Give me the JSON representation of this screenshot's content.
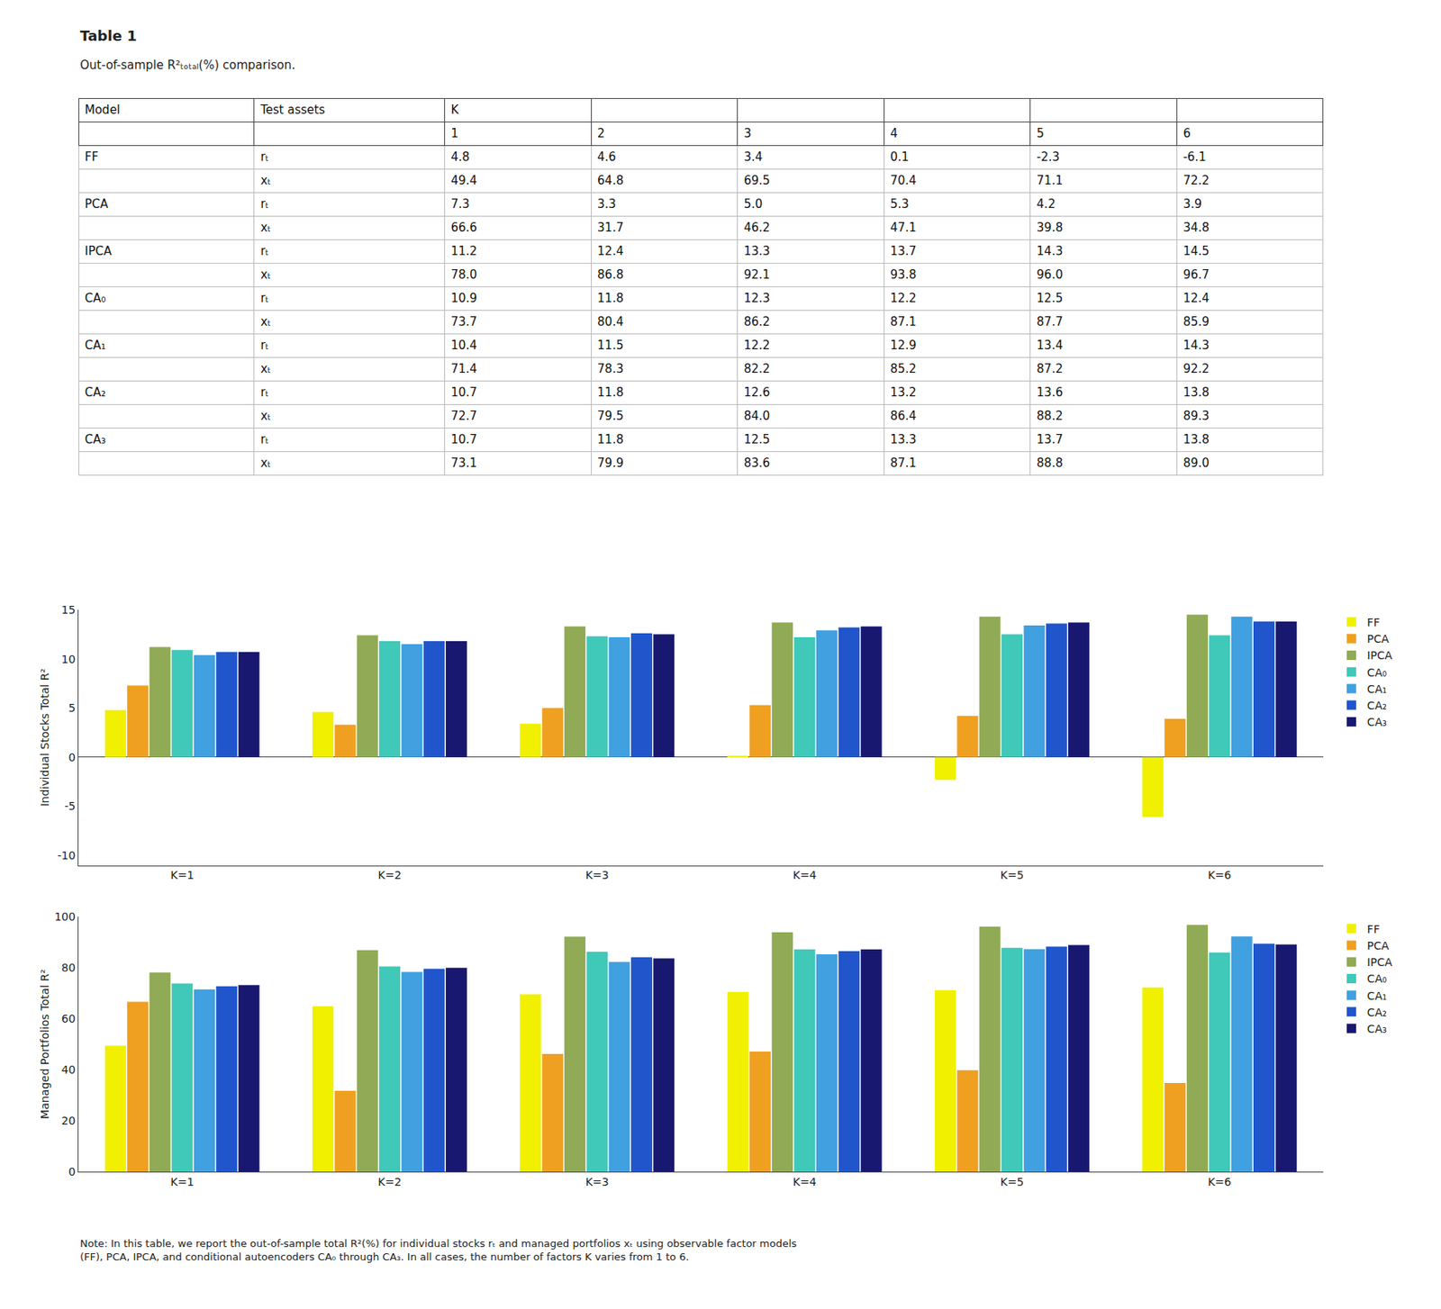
{
  "chart_data": [
    {
      "type": "table",
      "title": "Table 1",
      "subtitle": "Out-of-sample R²ₜₒₜₐₗ(%) comparison.",
      "header": [
        "Model",
        "Test assets"
      ],
      "k_label": "K",
      "k_values": [
        1,
        2,
        3,
        4,
        5,
        6
      ],
      "models": [
        {
          "model": "FF",
          "rows": [
            {
              "name": "rₜ",
              "cells": [
                "4.8",
                "4.6",
                "3.4",
                "0.1",
                "-2.3",
                "-6.1"
              ]
            },
            {
              "name": "xₜ",
              "cells": [
                "49.4",
                "64.8",
                "69.5",
                "70.4",
                "71.1",
                "72.2"
              ]
            }
          ]
        },
        {
          "model": "PCA",
          "rows": [
            {
              "name": "rₜ",
              "cells": [
                "7.3",
                "3.3",
                "5.0",
                "5.3",
                "4.2",
                "3.9"
              ]
            },
            {
              "name": "xₜ",
              "cells": [
                "66.6",
                "31.7",
                "46.2",
                "47.1",
                "39.8",
                "34.8"
              ]
            }
          ]
        },
        {
          "model": "IPCA",
          "rows": [
            {
              "name": "rₜ",
              "cells": [
                "11.2",
                "12.4",
                "13.3",
                "13.7",
                "14.3",
                "14.5"
              ]
            },
            {
              "name": "xₜ",
              "cells": [
                "78.0",
                "86.8",
                "92.1",
                "93.8",
                "96.0",
                "96.7"
              ]
            }
          ]
        },
        {
          "model": "CA₀",
          "rows": [
            {
              "name": "rₜ",
              "cells": [
                "10.9",
                "11.8",
                "12.3",
                "12.2",
                "12.5",
                "12.4"
              ]
            },
            {
              "name": "xₜ",
              "cells": [
                "73.7",
                "80.4",
                "86.2",
                "87.1",
                "87.7",
                "85.9"
              ]
            }
          ]
        },
        {
          "model": "CA₁",
          "rows": [
            {
              "name": "rₜ",
              "cells": [
                "10.4",
                "11.5",
                "12.2",
                "12.9",
                "13.4",
                "14.3"
              ]
            },
            {
              "name": "xₜ",
              "cells": [
                "71.4",
                "78.3",
                "82.2",
                "85.2",
                "87.2",
                "92.2"
              ]
            }
          ]
        },
        {
          "model": "CA₂",
          "rows": [
            {
              "name": "rₜ",
              "cells": [
                "10.7",
                "11.8",
                "12.6",
                "13.2",
                "13.6",
                "13.8"
              ]
            },
            {
              "name": "xₜ",
              "cells": [
                "72.7",
                "79.5",
                "84.0",
                "86.4",
                "88.2",
                "89.3"
              ]
            }
          ]
        },
        {
          "model": "CA₃",
          "rows": [
            {
              "name": "rₜ",
              "cells": [
                "10.7",
                "11.8",
                "12.5",
                "13.3",
                "13.7",
                "13.8"
              ]
            },
            {
              "name": "xₜ",
              "cells": [
                "73.1",
                "79.9",
                "83.6",
                "87.1",
                "88.8",
                "89.0"
              ]
            }
          ]
        }
      ]
    },
    {
      "type": "bar",
      "ylabel": "Individual Stocks Total R²",
      "categories": [
        "K=1",
        "K=2",
        "K=3",
        "K=4",
        "K=5",
        "K=6"
      ],
      "series": [
        {
          "name": "FF",
          "color": "#f0f000",
          "values": [
            4.8,
            4.6,
            3.4,
            0.1,
            -2.3,
            -6.1
          ]
        },
        {
          "name": "PCA",
          "color": "#f0a020",
          "values": [
            7.3,
            3.3,
            5.0,
            5.3,
            4.2,
            3.9
          ]
        },
        {
          "name": "IPCA",
          "color": "#90aa55",
          "values": [
            11.2,
            12.4,
            13.3,
            13.7,
            14.3,
            14.5
          ]
        },
        {
          "name": "CA₀",
          "color": "#40c8b8",
          "values": [
            10.9,
            11.8,
            12.3,
            12.2,
            12.5,
            12.4
          ]
        },
        {
          "name": "CA₁",
          "color": "#40a0e0",
          "values": [
            10.4,
            11.5,
            12.2,
            12.9,
            13.4,
            14.3
          ]
        },
        {
          "name": "CA₂",
          "color": "#2055cc",
          "values": [
            10.7,
            11.8,
            12.6,
            13.2,
            13.6,
            13.8
          ]
        },
        {
          "name": "CA₃",
          "color": "#181870",
          "values": [
            10.7,
            11.8,
            12.5,
            13.3,
            13.7,
            13.8
          ]
        }
      ],
      "ylim": [
        -11,
        15
      ],
      "yticks": [
        -10,
        -5,
        0,
        5,
        10,
        15
      ],
      "grid": false,
      "legend": "upper right"
    },
    {
      "type": "bar",
      "ylabel": "Managed Portfolios Total R²",
      "categories": [
        "K=1",
        "K=2",
        "K=3",
        "K=4",
        "K=5",
        "K=6"
      ],
      "series": [
        {
          "name": "FF",
          "color": "#f0f000",
          "values": [
            49.4,
            64.8,
            69.5,
            70.4,
            71.1,
            72.2
          ]
        },
        {
          "name": "PCA",
          "color": "#f0a020",
          "values": [
            66.6,
            31.7,
            46.2,
            47.1,
            39.8,
            34.8
          ]
        },
        {
          "name": "IPCA",
          "color": "#90aa55",
          "values": [
            78.0,
            86.8,
            92.1,
            93.8,
            96.0,
            96.7
          ]
        },
        {
          "name": "CA₀",
          "color": "#40c8b8",
          "values": [
            73.7,
            80.4,
            86.2,
            87.1,
            87.7,
            85.9
          ]
        },
        {
          "name": "CA₁",
          "color": "#40a0e0",
          "values": [
            71.4,
            78.3,
            82.2,
            85.2,
            87.2,
            92.2
          ]
        },
        {
          "name": "CA₂",
          "color": "#2055cc",
          "values": [
            72.7,
            79.5,
            84.0,
            86.4,
            88.2,
            89.3
          ]
        },
        {
          "name": "CA₃",
          "color": "#181870",
          "values": [
            73.1,
            79.9,
            83.6,
            87.1,
            88.8,
            89.0
          ]
        }
      ],
      "ylim": [
        0,
        100
      ],
      "yticks": [
        0,
        20,
        40,
        60,
        80,
        100
      ],
      "grid": false,
      "legend": "upper right"
    }
  ],
  "note": "Note: In this table, we report the out-of-sample total R²(%) for individual stocks rₜ and managed portfolios xₜ using observable factor models\n(FF), PCA, IPCA, and conditional autoencoders CA₀ through CA₃. In all cases, the number of factors K varies from 1 to 6."
}
